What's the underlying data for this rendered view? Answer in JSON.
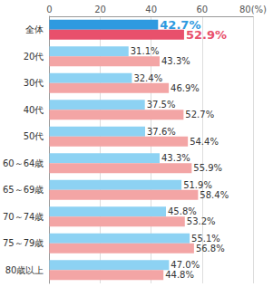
{
  "chart_data": {
    "type": "bar",
    "orientation": "horizontal",
    "categories": [
      "全体",
      "20代",
      "30代",
      "40代",
      "50代",
      "60～64歳",
      "65～69歳",
      "70～74歳",
      "75～79歳",
      "80歳以上"
    ],
    "series": [
      {
        "color": "#2e9ae0",
        "colors": [
          "#2e9ae0",
          "#8dd2f3",
          "#8dd2f3",
          "#8dd2f3",
          "#8dd2f3",
          "#8dd2f3",
          "#8dd2f3",
          "#8dd2f3",
          "#8dd2f3",
          "#8dd2f3"
        ],
        "values": [
          42.7,
          31.1,
          32.4,
          37.5,
          37.6,
          43.3,
          51.9,
          45.8,
          55.1,
          47.0
        ],
        "value_labels": [
          "42.7%",
          "31.1%",
          "32.4%",
          "37.5%",
          "37.6%",
          "43.3%",
          "51.9%",
          "45.8%",
          "55.1%",
          "47.0%"
        ]
      },
      {
        "color": "#e8506c",
        "colors": [
          "#e8506c",
          "#f3a5a5",
          "#f3a5a5",
          "#f3a5a5",
          "#f3a5a5",
          "#f3a5a5",
          "#f3a5a5",
          "#f3a5a5",
          "#f3a5a5",
          "#f3a5a5"
        ],
        "values": [
          52.9,
          43.3,
          46.9,
          52.7,
          54.4,
          55.9,
          58.4,
          53.2,
          56.8,
          44.8
        ],
        "value_labels": [
          "52.9%",
          "43.3%",
          "46.9%",
          "52.7%",
          "54.4%",
          "55.9%",
          "58.4%",
          "53.2%",
          "56.8%",
          "44.8%"
        ]
      }
    ],
    "xlim": [
      0,
      80
    ],
    "xticks": [
      0,
      20,
      40,
      60,
      {
        "value": 80,
        "label": "80(%)"
      }
    ],
    "grid": true,
    "data_labels": true
  }
}
